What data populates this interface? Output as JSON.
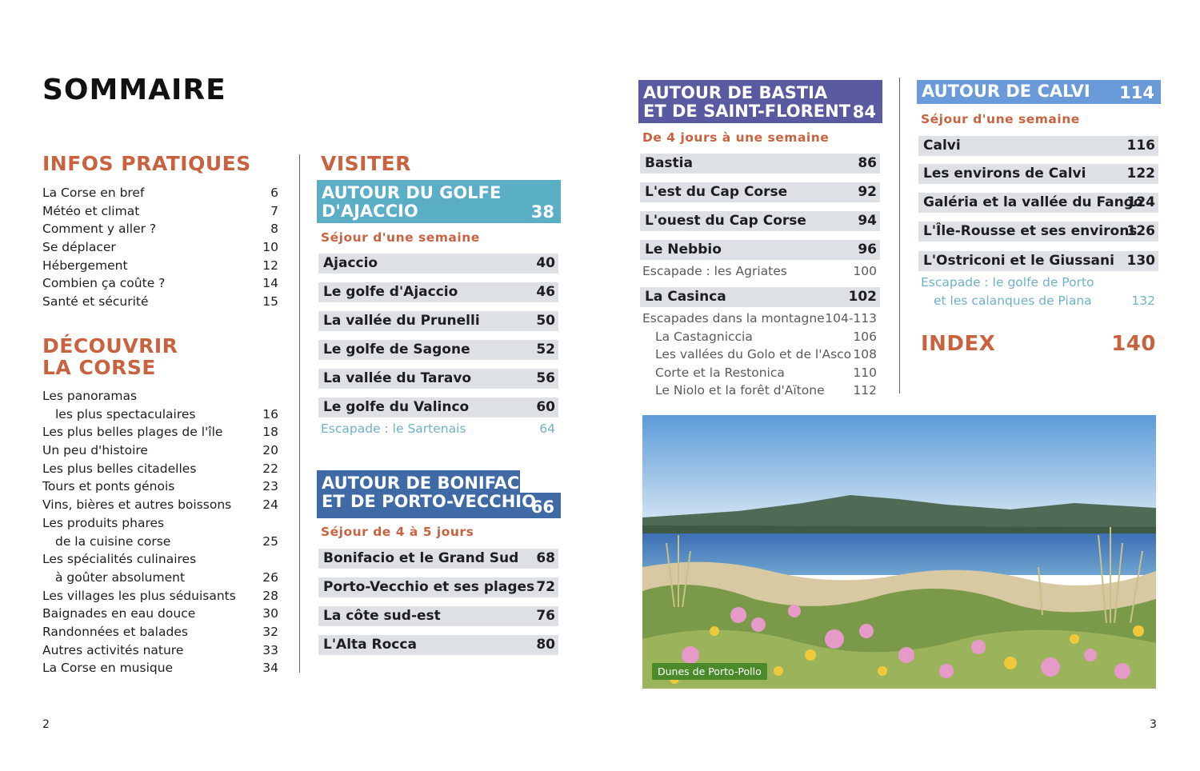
{
  "title": "SOMMAIRE",
  "col1": {
    "infos_heading": "INFOS PRATIQUES",
    "infos": [
      {
        "label": "La Corse en bref",
        "page": "6"
      },
      {
        "label": "Météo et climat",
        "page": "7"
      },
      {
        "label": "Comment y aller ?",
        "page": "8"
      },
      {
        "label": "Se déplacer",
        "page": "10"
      },
      {
        "label": "Hébergement",
        "page": "12"
      },
      {
        "label": "Combien ça coûte ?",
        "page": "14"
      },
      {
        "label": "Santé et sécurité",
        "page": "15"
      }
    ],
    "decouvrir_heading_1": "DÉCOUVRIR",
    "decouvrir_heading_2": "LA CORSE",
    "decouvrir": [
      {
        "label": "Les panoramas",
        "page": ""
      },
      {
        "label": "les plus spectaculaires",
        "page": "16"
      },
      {
        "label": "Les plus belles plages de l'île",
        "page": "18"
      },
      {
        "label": "Un peu d'histoire",
        "page": "20"
      },
      {
        "label": "Les plus belles citadelles",
        "page": "22"
      },
      {
        "label": "Tours et ponts génois",
        "page": "23"
      },
      {
        "label": "Vins, bières et autres boissons",
        "page": "24"
      },
      {
        "label": "Les produits phares",
        "page": ""
      },
      {
        "label": "de la cuisine corse",
        "page": "25"
      },
      {
        "label": "Les spécialités culinaires",
        "page": ""
      },
      {
        "label": "à goûter absolument",
        "page": "26"
      },
      {
        "label": "Les villages les plus séduisants",
        "page": "28"
      },
      {
        "label": "Baignades en eau douce",
        "page": "30"
      },
      {
        "label": "Randonnées et balades",
        "page": "32"
      },
      {
        "label": "Autres activités nature",
        "page": "33"
      },
      {
        "label": "La Corse en musique",
        "page": "34"
      }
    ]
  },
  "col2": {
    "heading": "VISITER",
    "ajaccio": {
      "line1": "AUTOUR DU GOLFE",
      "line2": "D'AJACCIO",
      "page": "38",
      "sejour": "Séjour d'une semaine",
      "items": [
        {
          "label": "Ajaccio",
          "page": "40"
        },
        {
          "label": "Le golfe d'Ajaccio",
          "page": "46"
        },
        {
          "label": "La vallée du Prunelli",
          "page": "50"
        },
        {
          "label": "Le golfe de Sagone",
          "page": "52"
        },
        {
          "label": "La vallée du Taravo",
          "page": "56"
        },
        {
          "label": "Le golfe du Valinco",
          "page": "60"
        }
      ],
      "escapade": {
        "label": "Escapade : le Sartenais",
        "page": "64"
      }
    },
    "bonifacio": {
      "line1": "AUTOUR DE BONIFACIO",
      "line2": "ET DE PORTO-VECCHIO",
      "page": "66",
      "sejour": "Séjour de 4 à 5 jours",
      "items": [
        {
          "label": "Bonifacio et le Grand Sud",
          "page": "68"
        },
        {
          "label": "Porto-Vecchio et ses plages",
          "page": "72"
        },
        {
          "label": "La côte sud-est",
          "page": "76"
        },
        {
          "label": "L'Alta Rocca",
          "page": "80"
        }
      ]
    }
  },
  "col3": {
    "line1": "AUTOUR DE BASTIA",
    "line2": "ET DE SAINT-FLORENT",
    "page": "84",
    "sejour": "De 4 jours à une semaine",
    "items": [
      {
        "label": "Bastia",
        "page": "86"
      },
      {
        "label": "L'est du Cap Corse",
        "page": "92"
      },
      {
        "label": "L'ouest du Cap Corse",
        "page": "94"
      },
      {
        "label": "Le Nebbio",
        "page": "96"
      }
    ],
    "escapade_agriates": {
      "label": "Escapade : les Agriates",
      "page": "100"
    },
    "casinca": {
      "label": "La Casinca",
      "page": "102"
    },
    "montagne": {
      "label": "Escapades dans la montagne",
      "page": "104-113"
    },
    "montagne_items": [
      {
        "label": "La Castagniccia",
        "page": "106"
      },
      {
        "label": "Les vallées du Golo et de l'Asco",
        "page": "108"
      },
      {
        "label": "Corte et la Restonica",
        "page": "110"
      },
      {
        "label": "Le Niolo et la forêt d'Aïtone",
        "page": "112"
      }
    ],
    "photo_caption": "Dunes de Porto-Pollo"
  },
  "col4": {
    "heading": "AUTOUR DE CALVI",
    "page": "114",
    "sejour": "Séjour d'une semaine",
    "items": [
      {
        "label": "Calvi",
        "page": "116"
      },
      {
        "label": "Les environs de Calvi",
        "page": "122"
      },
      {
        "label": "Galéria et la vallée du Fango",
        "page": "124"
      },
      {
        "label": "L'Île-Rousse et ses environs",
        "page": "126"
      },
      {
        "label": "L'Ostriconi et le Giussani",
        "page": "130"
      }
    ],
    "escapade_line1": "Escapade : le golfe de Porto",
    "escapade_line2": "et les calanques de Piana",
    "escapade_page": "132",
    "index_label": "INDEX",
    "index_page": "140"
  },
  "page_left": "2",
  "page_right": "3",
  "colors": {
    "accent_orange": "#c8623f",
    "ajaccio_blue": "#5aaec6",
    "bonifacio_blue": "#3f6aa6",
    "bastia_purple": "#5a5aa0",
    "calvi_blue": "#6a9ad8",
    "bar_grey": "#dde1e6"
  }
}
